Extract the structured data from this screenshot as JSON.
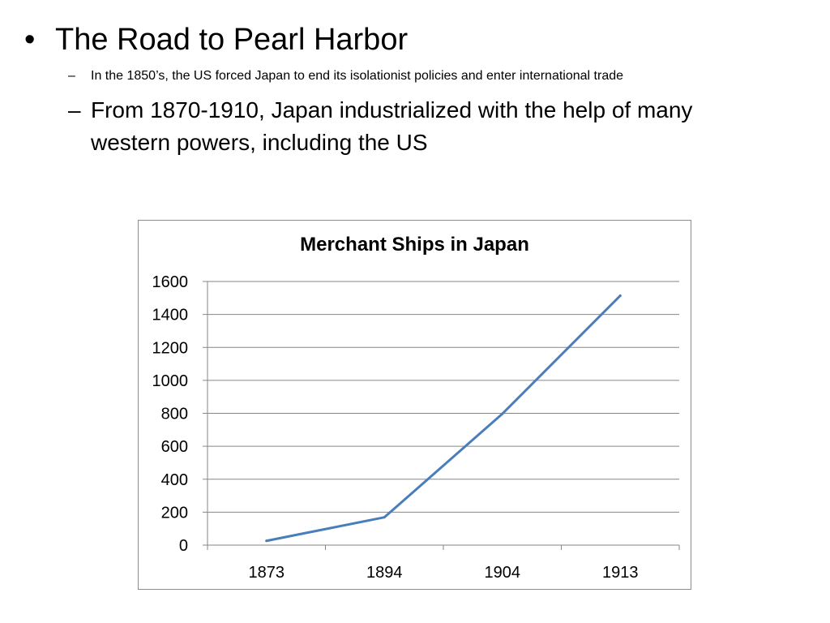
{
  "slide": {
    "title": "The Road to Pearl Harbor",
    "bullet_marker": "•",
    "dash_marker": "–",
    "sub_bullets": [
      "In the 1850’s, the US forced Japan to end its isolationist policies and enter international trade",
      "From 1870-1910, Japan industrialized with the help of many western powers, including the US"
    ]
  },
  "chart_data": {
    "type": "line",
    "title": "Merchant Ships in Japan",
    "categories": [
      "1873",
      "1894",
      "1904",
      "1913"
    ],
    "series": [
      {
        "values": [
          26,
          169,
          797,
          1514
        ]
      }
    ],
    "ylim": [
      0,
      1600
    ],
    "yticks": [
      0,
      200,
      400,
      600,
      800,
      1000,
      1200,
      1400,
      1600
    ],
    "grid": true,
    "legend": "none",
    "line_color": "#4a7ebb",
    "grid_color": "#868686"
  }
}
